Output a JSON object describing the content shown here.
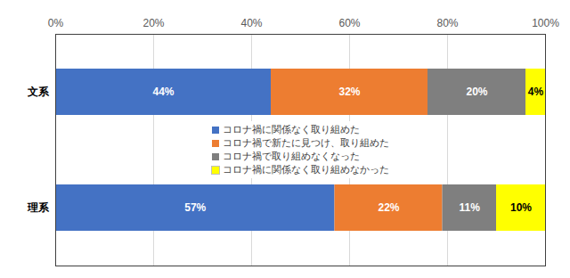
{
  "chart_data": {
    "type": "bar",
    "orientation": "horizontal",
    "stacked": true,
    "categories": [
      "文系",
      "理系"
    ],
    "series": [
      {
        "name": "コロナ禍に関係なく取り組めた",
        "color": "#4472c4",
        "values": [
          44,
          57
        ],
        "value_labels": [
          "44%",
          "57%"
        ]
      },
      {
        "name": "コロナ禍で新たに見つけ、取り組めた",
        "color": "#ed7d31",
        "values": [
          32,
          22
        ],
        "value_labels": [
          "32%",
          "22%"
        ]
      },
      {
        "name": "コロナ禍で取り組めなくなった",
        "color": "#7f7f7f",
        "values": [
          20,
          11
        ],
        "value_labels": [
          "20%",
          "11%"
        ]
      },
      {
        "name": "コロナ禍に関係なく取り組めなかった",
        "color": "#ffff00",
        "values": [
          4,
          10
        ],
        "value_labels": [
          "4%",
          "10%"
        ]
      }
    ],
    "xlim": [
      0,
      100
    ],
    "xticks": [
      {
        "value": 0,
        "label": "0%"
      },
      {
        "value": 20,
        "label": "20%"
      },
      {
        "value": 40,
        "label": "40%"
      },
      {
        "value": 60,
        "label": "60%"
      },
      {
        "value": 80,
        "label": "80%"
      },
      {
        "value": 100,
        "label": "100%"
      }
    ],
    "grid": true,
    "data_labels": true,
    "legend": "center"
  }
}
